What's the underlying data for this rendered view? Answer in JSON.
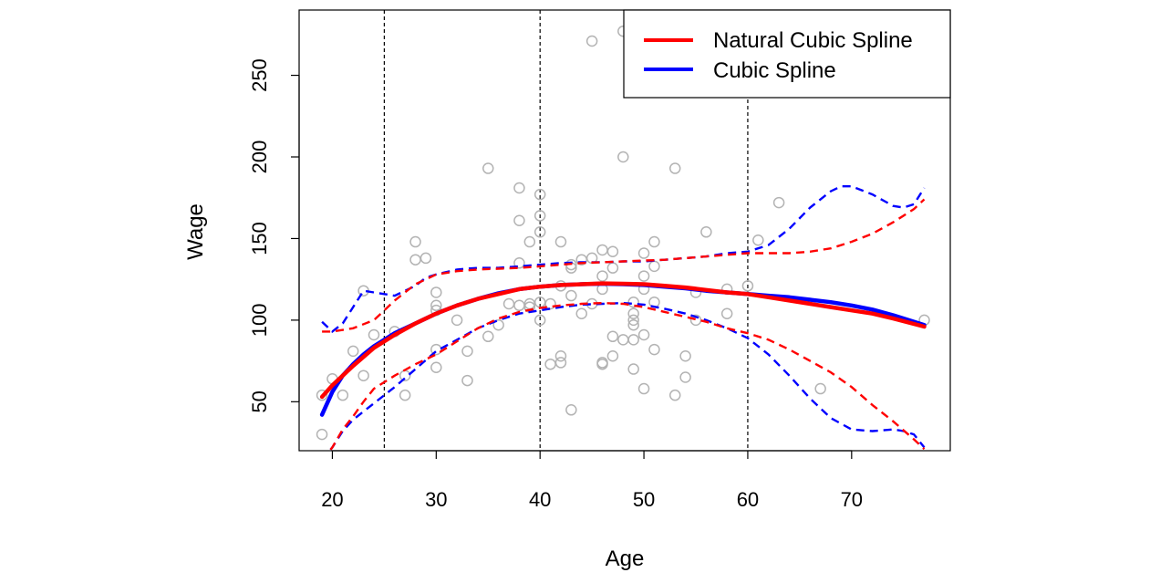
{
  "chart_data": {
    "type": "scatter",
    "xlabel": "Age",
    "ylabel": "Wage",
    "xlim": [
      16.8,
      79.5
    ],
    "ylim": [
      20,
      290
    ],
    "x_ticks": [
      20,
      30,
      40,
      50,
      60,
      70
    ],
    "y_ticks": [
      50,
      100,
      150,
      200,
      250
    ],
    "knots": [
      25,
      40,
      60
    ],
    "grid": false,
    "legend_position": "top-right",
    "point_color": "#b3b3b3",
    "points": [
      [
        19,
        54
      ],
      [
        19,
        30
      ],
      [
        20,
        64
      ],
      [
        21,
        54
      ],
      [
        22,
        81
      ],
      [
        23,
        118
      ],
      [
        23,
        66
      ],
      [
        24,
        91
      ],
      [
        26,
        93
      ],
      [
        27,
        66
      ],
      [
        27,
        54
      ],
      [
        28,
        148
      ],
      [
        28,
        137
      ],
      [
        29,
        138
      ],
      [
        30,
        117
      ],
      [
        30,
        109
      ],
      [
        30,
        106
      ],
      [
        30,
        82
      ],
      [
        30,
        71
      ],
      [
        32,
        100
      ],
      [
        33,
        81
      ],
      [
        33,
        63
      ],
      [
        35,
        193
      ],
      [
        35,
        90
      ],
      [
        36,
        97
      ],
      [
        37,
        110
      ],
      [
        38,
        181
      ],
      [
        38,
        161
      ],
      [
        38,
        135
      ],
      [
        38,
        109
      ],
      [
        39,
        148
      ],
      [
        39,
        108
      ],
      [
        39,
        110
      ],
      [
        40,
        177
      ],
      [
        40,
        164
      ],
      [
        40,
        154
      ],
      [
        40,
        111
      ],
      [
        40,
        100
      ],
      [
        41,
        110
      ],
      [
        41,
        73
      ],
      [
        42,
        148
      ],
      [
        42,
        121
      ],
      [
        42,
        78
      ],
      [
        42,
        74
      ],
      [
        43,
        134
      ],
      [
        43,
        132
      ],
      [
        43,
        115
      ],
      [
        43,
        45
      ],
      [
        44,
        137
      ],
      [
        44,
        104
      ],
      [
        45,
        271
      ],
      [
        45,
        138
      ],
      [
        45,
        110
      ],
      [
        46,
        143
      ],
      [
        46,
        127
      ],
      [
        46,
        119
      ],
      [
        46,
        74
      ],
      [
        46,
        73
      ],
      [
        47,
        142
      ],
      [
        47,
        132
      ],
      [
        47,
        90
      ],
      [
        47,
        78
      ],
      [
        48,
        277
      ],
      [
        48,
        200
      ],
      [
        48,
        88
      ],
      [
        49,
        111
      ],
      [
        49,
        104
      ],
      [
        49,
        100
      ],
      [
        49,
        97
      ],
      [
        49,
        88
      ],
      [
        49,
        70
      ],
      [
        50,
        141
      ],
      [
        50,
        127
      ],
      [
        50,
        119
      ],
      [
        50,
        91
      ],
      [
        50,
        58
      ],
      [
        51,
        281
      ],
      [
        51,
        148
      ],
      [
        51,
        133
      ],
      [
        51,
        111
      ],
      [
        51,
        82
      ],
      [
        53,
        193
      ],
      [
        53,
        54
      ],
      [
        54,
        78
      ],
      [
        54,
        65
      ],
      [
        55,
        117
      ],
      [
        55,
        100
      ],
      [
        56,
        154
      ],
      [
        58,
        119
      ],
      [
        58,
        104
      ],
      [
        60,
        121
      ],
      [
        61,
        149
      ],
      [
        63,
        172
      ],
      [
        67,
        58
      ],
      [
        77,
        100
      ]
    ],
    "series": [
      {
        "name": "Natural Cubic Spline",
        "color": "#ff0000",
        "fit": [
          [
            19,
            53
          ],
          [
            20,
            60
          ],
          [
            22,
            72
          ],
          [
            24,
            83
          ],
          [
            26,
            91
          ],
          [
            28,
            98
          ],
          [
            30,
            104
          ],
          [
            32,
            109
          ],
          [
            34,
            113
          ],
          [
            36,
            116
          ],
          [
            38,
            119
          ],
          [
            40,
            120.5
          ],
          [
            42,
            121.5
          ],
          [
            44,
            122
          ],
          [
            46,
            122.5
          ],
          [
            48,
            122.3
          ],
          [
            50,
            122
          ],
          [
            52,
            121
          ],
          [
            54,
            120
          ],
          [
            56,
            118.5
          ],
          [
            58,
            117
          ],
          [
            60,
            116
          ],
          [
            62,
            114
          ],
          [
            64,
            112
          ],
          [
            66,
            110
          ],
          [
            68,
            108
          ],
          [
            70,
            106
          ],
          [
            72,
            104
          ],
          [
            74,
            101
          ],
          [
            77,
            96
          ]
        ],
        "upper": [
          [
            19,
            93
          ],
          [
            20,
            93
          ],
          [
            22,
            95
          ],
          [
            24,
            100
          ],
          [
            26,
            112
          ],
          [
            28,
            122
          ],
          [
            30,
            128
          ],
          [
            32,
            130
          ],
          [
            34,
            131
          ],
          [
            36,
            131.5
          ],
          [
            38,
            132
          ],
          [
            40,
            133
          ],
          [
            42,
            134
          ],
          [
            44,
            135
          ],
          [
            46,
            135.5
          ],
          [
            48,
            136
          ],
          [
            50,
            136.5
          ],
          [
            52,
            137
          ],
          [
            54,
            138
          ],
          [
            56,
            139
          ],
          [
            58,
            140
          ],
          [
            60,
            141
          ],
          [
            62,
            141
          ],
          [
            64,
            141
          ],
          [
            66,
            142
          ],
          [
            68,
            144
          ],
          [
            70,
            148
          ],
          [
            72,
            153
          ],
          [
            74,
            160
          ],
          [
            76,
            168
          ],
          [
            77,
            174
          ]
        ],
        "lower": [
          [
            19,
            14
          ],
          [
            20,
            22
          ],
          [
            21,
            33
          ],
          [
            22,
            41
          ],
          [
            23,
            50
          ],
          [
            24,
            58
          ],
          [
            26,
            66
          ],
          [
            28,
            73
          ],
          [
            30,
            79
          ],
          [
            32,
            87
          ],
          [
            34,
            95
          ],
          [
            36,
            101
          ],
          [
            38,
            105
          ],
          [
            40,
            107.5
          ],
          [
            42,
            109
          ],
          [
            44,
            110
          ],
          [
            46,
            110.5
          ],
          [
            48,
            110
          ],
          [
            50,
            108
          ],
          [
            52,
            105
          ],
          [
            54,
            102
          ],
          [
            56,
            99
          ],
          [
            58,
            95
          ],
          [
            60,
            92
          ],
          [
            62,
            88
          ],
          [
            64,
            82
          ],
          [
            66,
            75
          ],
          [
            68,
            68
          ],
          [
            70,
            59
          ],
          [
            72,
            48
          ],
          [
            74,
            38
          ],
          [
            76,
            27
          ],
          [
            77,
            21
          ]
        ]
      },
      {
        "name": "Cubic Spline",
        "color": "#0000ff",
        "fit": [
          [
            19,
            42
          ],
          [
            20,
            56
          ],
          [
            21,
            66
          ],
          [
            22,
            73
          ],
          [
            23,
            79
          ],
          [
            24,
            84
          ],
          [
            25,
            88
          ],
          [
            26,
            92
          ],
          [
            28,
            98
          ],
          [
            30,
            104
          ],
          [
            32,
            109
          ],
          [
            34,
            113
          ],
          [
            36,
            116.5
          ],
          [
            38,
            119
          ],
          [
            40,
            120.5
          ],
          [
            42,
            121.5
          ],
          [
            44,
            122
          ],
          [
            46,
            122.3
          ],
          [
            48,
            122
          ],
          [
            50,
            121.5
          ],
          [
            52,
            120.5
          ],
          [
            54,
            119.5
          ],
          [
            56,
            118
          ],
          [
            58,
            117
          ],
          [
            60,
            116
          ],
          [
            62,
            115
          ],
          [
            64,
            114
          ],
          [
            66,
            112.5
          ],
          [
            68,
            111
          ],
          [
            70,
            109
          ],
          [
            72,
            106.5
          ],
          [
            74,
            103
          ],
          [
            76,
            99
          ],
          [
            77,
            97
          ]
        ],
        "upper": [
          [
            19,
            99
          ],
          [
            19.5,
            96
          ],
          [
            20,
            93
          ],
          [
            21,
            98
          ],
          [
            22,
            108
          ],
          [
            23,
            118
          ],
          [
            24,
            117
          ],
          [
            25,
            116
          ],
          [
            26,
            115
          ],
          [
            27,
            118
          ],
          [
            28,
            121
          ],
          [
            29,
            126
          ],
          [
            30,
            128
          ],
          [
            32,
            131
          ],
          [
            34,
            132
          ],
          [
            36,
            132
          ],
          [
            38,
            133
          ],
          [
            40,
            134
          ],
          [
            42,
            135
          ],
          [
            44,
            135.5
          ],
          [
            46,
            135.5
          ],
          [
            48,
            136
          ],
          [
            50,
            136
          ],
          [
            52,
            137
          ],
          [
            54,
            138
          ],
          [
            56,
            139
          ],
          [
            58,
            141
          ],
          [
            60,
            142
          ],
          [
            62,
            146
          ],
          [
            64,
            156
          ],
          [
            66,
            169
          ],
          [
            68,
            179
          ],
          [
            69,
            182
          ],
          [
            70,
            182
          ],
          [
            72,
            177
          ],
          [
            74,
            170
          ],
          [
            75,
            169
          ],
          [
            76,
            171
          ],
          [
            77,
            181
          ]
        ],
        "lower": [
          [
            19,
            14
          ],
          [
            20,
            22
          ],
          [
            21,
            32
          ],
          [
            22,
            39
          ],
          [
            24,
            49
          ],
          [
            26,
            59
          ],
          [
            28,
            70
          ],
          [
            30,
            81
          ],
          [
            32,
            88
          ],
          [
            34,
            95
          ],
          [
            36,
            100
          ],
          [
            38,
            104
          ],
          [
            40,
            106
          ],
          [
            42,
            108
          ],
          [
            44,
            109.5
          ],
          [
            46,
            110
          ],
          [
            48,
            110.5
          ],
          [
            50,
            109.5
          ],
          [
            52,
            107
          ],
          [
            54,
            104
          ],
          [
            56,
            100
          ],
          [
            58,
            95
          ],
          [
            60,
            89
          ],
          [
            62,
            79
          ],
          [
            64,
            66
          ],
          [
            66,
            52
          ],
          [
            68,
            40
          ],
          [
            70,
            33
          ],
          [
            72,
            32
          ],
          [
            74,
            33
          ],
          [
            75,
            32
          ],
          [
            76,
            30
          ],
          [
            77,
            22
          ]
        ]
      }
    ]
  }
}
